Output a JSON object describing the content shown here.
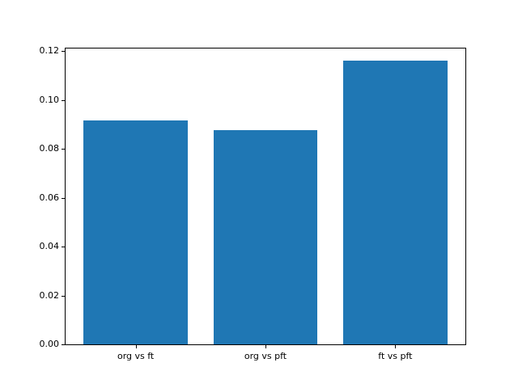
{
  "figure": {
    "background": "#ffffff",
    "title": ""
  },
  "chart_data": {
    "type": "bar",
    "title": "",
    "xlabel": "",
    "ylabel": "",
    "categories": [
      "org vs ft",
      "org vs pft",
      "ft vs pft"
    ],
    "values": [
      0.0915,
      0.0875,
      0.116
    ],
    "yticks": [
      0.0,
      0.02,
      0.04,
      0.06,
      0.08,
      0.1,
      0.12
    ],
    "ytick_labels": [
      "0.00",
      "0.02",
      "0.04",
      "0.06",
      "0.08",
      "0.10",
      "0.12"
    ],
    "ylim": [
      0,
      0.121
    ],
    "bar_color": "#1f77b4",
    "axis_color": "#000000",
    "text_color": "#000000",
    "bar_width_fraction": 0.8,
    "grid": false,
    "legend": null
  }
}
